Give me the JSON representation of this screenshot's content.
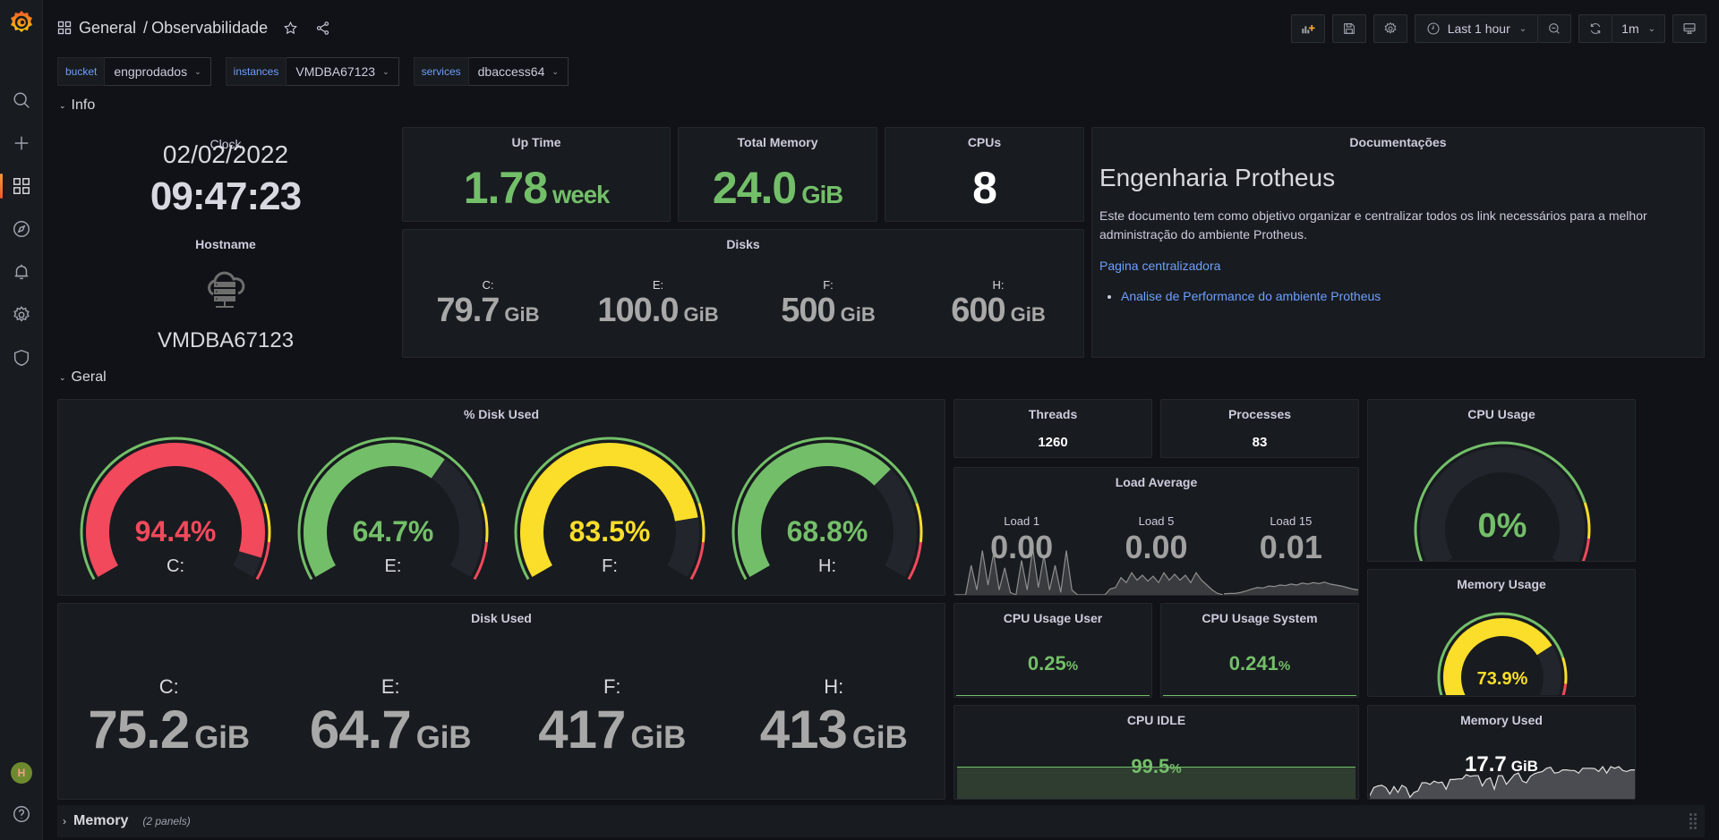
{
  "app": {
    "breadcrumb": {
      "folder": "General",
      "separator": "/",
      "dashboard": "Observabilidade"
    }
  },
  "toolbar": {
    "time_range": "Last 1 hour",
    "refresh_interval": "1m"
  },
  "variables": [
    {
      "label": "bucket",
      "value": "engprodados"
    },
    {
      "label": "instances",
      "value": "VMDBA67123"
    },
    {
      "label": "services",
      "value": "dbaccess64"
    }
  ],
  "rows": {
    "info": "Info",
    "geral": "Geral",
    "memory": {
      "label": "Memory",
      "count": "(2 panels)"
    }
  },
  "clock": {
    "title": "Clock",
    "date": "02/02/2022",
    "time": "09:47:23"
  },
  "hostname": {
    "title": "Hostname",
    "value": "VMDBA67123"
  },
  "uptime": {
    "title": "Up Time",
    "value": "1.78",
    "unit": "week"
  },
  "total_memory": {
    "title": "Total Memory",
    "value": "24.0",
    "unit": "GiB"
  },
  "cpus": {
    "title": "CPUs",
    "value": "8"
  },
  "disks": {
    "title": "Disks",
    "items": [
      {
        "label": "C:",
        "value": "79.7",
        "unit": "GiB"
      },
      {
        "label": "E:",
        "value": "100.0",
        "unit": "GiB"
      },
      {
        "label": "F:",
        "value": "500",
        "unit": "GiB"
      },
      {
        "label": "H:",
        "value": "600",
        "unit": "GiB"
      }
    ]
  },
  "docs": {
    "title": "Documentações",
    "heading": "Engenharia Protheus",
    "body": "Este documento tem como objetivo organizar e centralizar todos os link necessários para a melhor administração do ambiente Protheus.",
    "link_main": "Pagina centralizadora",
    "links": [
      "Analise de Performance do ambiente Protheus"
    ]
  },
  "disk_used_pct": {
    "title": "% Disk Used",
    "thresholds": {
      "yellow": 80,
      "red": 90
    },
    "items": [
      {
        "label": "C:",
        "value": 94.4,
        "display": "94.4%",
        "color": "#f2495c"
      },
      {
        "label": "E:",
        "value": 64.7,
        "display": "64.7%",
        "color": "#73bf69"
      },
      {
        "label": "F:",
        "value": 83.5,
        "display": "83.5%",
        "color": "#fade2a"
      },
      {
        "label": "H:",
        "value": 68.8,
        "display": "68.8%",
        "color": "#73bf69"
      }
    ]
  },
  "threads": {
    "title": "Threads",
    "value": "1260"
  },
  "processes": {
    "title": "Processes",
    "value": "83"
  },
  "load_average": {
    "title": "Load Average",
    "items": [
      {
        "label": "Load 1",
        "value": "0.00",
        "spark": [
          0,
          0,
          0,
          0.6,
          0.1,
          0.9,
          0.2,
          0.85,
          0.1,
          0.55,
          0.05,
          0,
          0.7,
          0.1,
          0.95,
          0.15,
          0.8,
          0.1,
          0.6,
          0.05,
          0.9,
          0.1,
          0,
          0,
          0
        ]
      },
      {
        "label": "Load 5",
        "value": "0.00",
        "spark": [
          0,
          0,
          0,
          0,
          0.12,
          0.15,
          0.35,
          0.25,
          0.45,
          0.3,
          0.4,
          0.28,
          0.38,
          0.25,
          0.45,
          0.3,
          0.42,
          0.3,
          0.4,
          0.25,
          0.45,
          0.3,
          0.2,
          0.1,
          0.03,
          0
        ]
      },
      {
        "label": "Load 15",
        "value": "0.01",
        "spark": [
          0.02,
          0.03,
          0.03,
          0.05,
          0.08,
          0.12,
          0.15,
          0.14,
          0.18,
          0.17,
          0.2,
          0.19,
          0.22,
          0.2,
          0.24,
          0.22,
          0.25,
          0.23,
          0.26,
          0.22,
          0.2,
          0.18,
          0.15,
          0.12,
          0.1
        ]
      }
    ]
  },
  "cpu_usage": {
    "title": "CPU Usage",
    "value": 0,
    "display": "0%",
    "color": "#73bf69"
  },
  "memory_usage": {
    "title": "Memory Usage",
    "value": 73.9,
    "display": "73.9%",
    "color": "#fade2a"
  },
  "disk_used": {
    "title": "Disk Used",
    "items": [
      {
        "label": "C:",
        "value": "75.2",
        "unit": "GiB"
      },
      {
        "label": "E:",
        "value": "64.7",
        "unit": "GiB"
      },
      {
        "label": "F:",
        "value": "417",
        "unit": "GiB"
      },
      {
        "label": "H:",
        "value": "413",
        "unit": "GiB"
      }
    ]
  },
  "cpu_user": {
    "title": "CPU Usage User",
    "value": "0.25",
    "unit": "%"
  },
  "cpu_system": {
    "title": "CPU Usage System",
    "value": "0.241",
    "unit": "%"
  },
  "cpu_idle": {
    "title": "CPU IDLE",
    "value": "99.5",
    "unit": "%"
  },
  "memory_used": {
    "title": "Memory Used",
    "value": "17.7",
    "unit": "GiB",
    "spark": [
      0.1,
      0.35,
      0.4,
      0.42,
      0.35,
      0.15,
      0.38,
      0.2,
      0.42,
      0.35,
      0.05,
      0.2,
      0.25,
      0.5,
      0.5,
      0.45,
      0.55,
      0.5,
      0.52,
      0.3,
      0.6,
      0.6,
      0.62,
      0.62,
      0.75,
      0.7,
      0.72,
      0.72,
      0.4,
      0.6,
      0.65,
      0.3,
      0.72,
      0.72,
      0.45,
      0.6,
      0.75,
      0.8,
      0.55,
      0.5,
      0.7,
      0.78,
      0.82,
      0.85,
      0.95,
      0.98,
      0.8,
      0.82,
      0.9,
      0.9,
      0.88,
      0.88,
      0.8,
      0.95,
      0.95,
      0.95,
      0.94,
      0.85,
      1,
      0.8,
      1,
      0.95,
      1,
      0.88,
      0.85,
      0.9,
      0.9
    ]
  }
}
